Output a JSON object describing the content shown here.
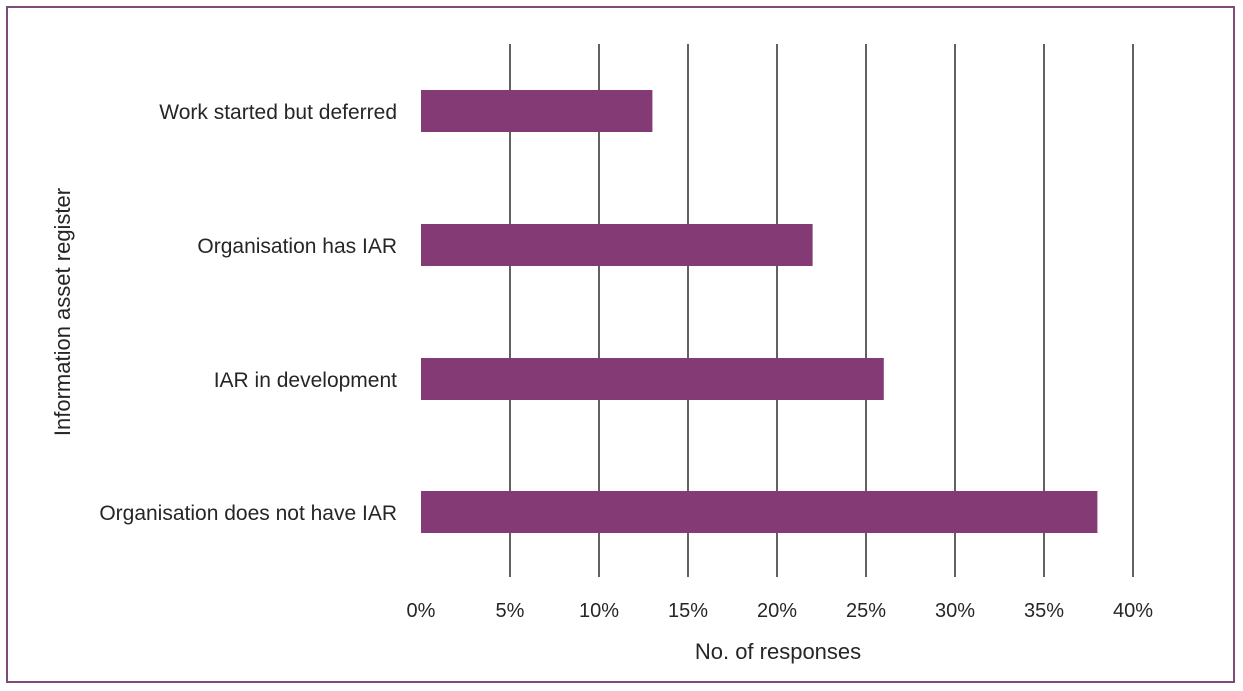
{
  "chart_data": {
    "type": "bar",
    "orientation": "horizontal",
    "categories": [
      "Work started but deferred",
      "Organisation has IAR",
      "IAR in development",
      "Organisation does not have IAR"
    ],
    "values": [
      13,
      22,
      26,
      38
    ],
    "xlabel": "No. of responses",
    "ylabel": "Information asset register",
    "xlim": [
      0,
      40
    ],
    "x_ticks": [
      0,
      5,
      10,
      15,
      20,
      25,
      30,
      35,
      40
    ],
    "x_tick_labels": [
      "0%",
      "5%",
      "10%",
      "15%",
      "20%",
      "25%",
      "30%",
      "35%",
      "40%"
    ],
    "grid": "vertical",
    "legend": "none",
    "bar_color": "#833a75",
    "frame_color": "#7e4c78"
  }
}
